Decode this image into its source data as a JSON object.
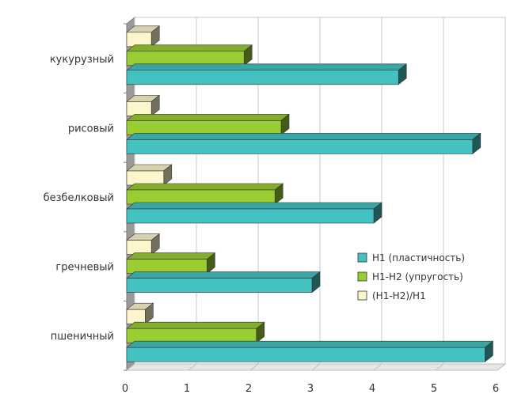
{
  "chart_data": {
    "type": "bar",
    "orientation": "horizontal",
    "style": "3d",
    "categories": [
      "кукурузный",
      "рисовый",
      "безбелковый",
      "гречневый",
      "пшеничный"
    ],
    "series": [
      {
        "name": "(H1-H2)/H1",
        "color": "#fdf6cc",
        "values": [
          0.4,
          0.4,
          0.6,
          0.4,
          0.3
        ]
      },
      {
        "name": "H1-H2 (упругость)",
        "color": "#9acd32",
        "values": [
          1.9,
          2.5,
          2.4,
          1.3,
          2.1
        ]
      },
      {
        "name": "H1 (пластичность)",
        "color": "#44c2c2",
        "values": [
          4.4,
          5.6,
          4.0,
          3.0,
          5.8
        ]
      }
    ],
    "legend": {
      "placement": "right",
      "items": [
        "H1 (пластичность)",
        "H1-H2 (упругость)",
        "(H1-H2)/H1"
      ]
    },
    "x_ticks": [
      "0",
      "1",
      "2",
      "3",
      "4",
      "5",
      "6"
    ],
    "xlim": [
      0,
      6
    ],
    "grid": true,
    "title": "",
    "xlabel": "",
    "ylabel": ""
  }
}
